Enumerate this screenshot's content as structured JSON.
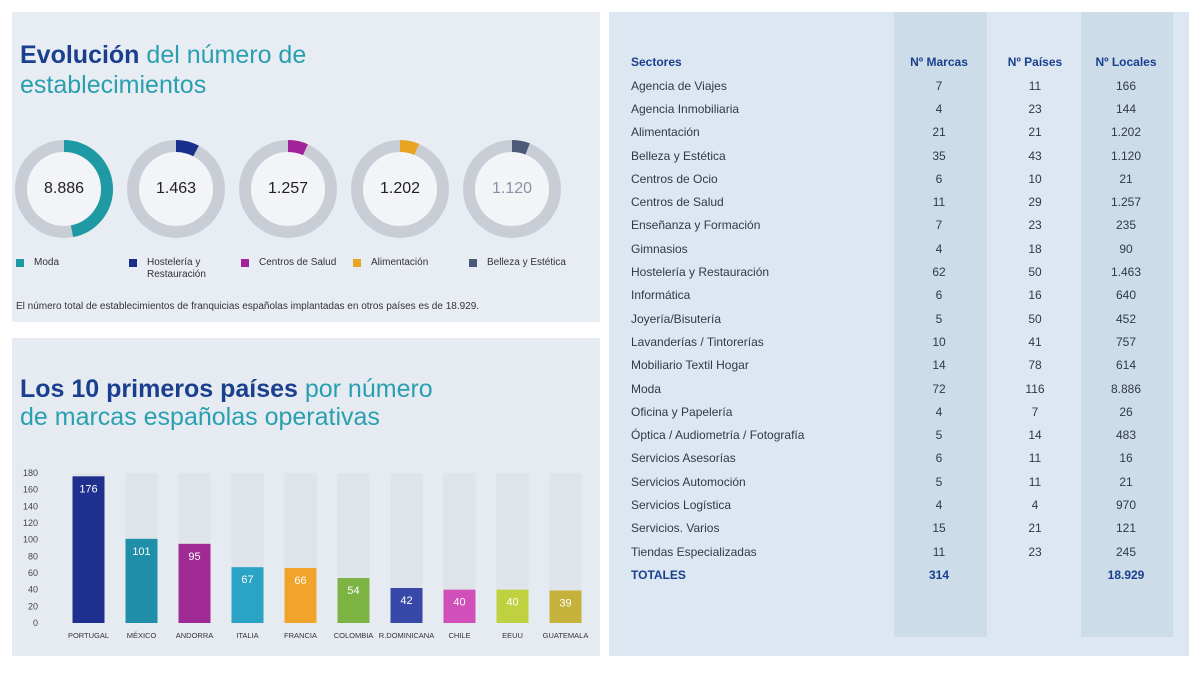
{
  "donut_panel": {
    "title_part1": "Evolución",
    "title_part2": " del número de",
    "title_part3": "establecimientos",
    "footnote": "El número total de establecimientos de franquicias españolas implantadas en otros países es de 18.929."
  },
  "bar_panel": {
    "title_part1": "Los 10 primeros países",
    "title_part2": " por número",
    "title_part3": "de marcas españolas operativas"
  },
  "chart_data": [
    {
      "type": "pie",
      "title": "Evolución del número de establecimientos",
      "series": [
        {
          "name": "Moda",
          "label": "8.886",
          "value": 8886,
          "color": "#1f9aa5"
        },
        {
          "name": "Hostelería y Restauración",
          "label": "1.463",
          "value": 1463,
          "color": "#1a2f8c"
        },
        {
          "name": "Centros de Salud",
          "label": "1.257",
          "value": 1257,
          "color": "#a3219b"
        },
        {
          "name": "Alimentación",
          "label": "1.202",
          "value": 1202,
          "color": "#e9a521"
        },
        {
          "name": "Belleza y Estética",
          "label": "1.120",
          "value": 1120,
          "color": "#4a5a78"
        }
      ],
      "legend_labels": [
        {
          "line1": "Moda",
          "line2": ""
        },
        {
          "line1": "Hostelería y",
          "line2": "Restauración"
        },
        {
          "line1": "Centros de Salud",
          "line2": ""
        },
        {
          "line1": "Alimentación",
          "line2": ""
        },
        {
          "line1": "Belleza y Estética",
          "line2": ""
        }
      ],
      "total": 18929,
      "legend_position": "bottom"
    },
    {
      "type": "bar",
      "title": "Los 10 primeros países por número de marcas españolas operativas",
      "categories": [
        "PORTUGAL",
        "MÉXICO",
        "ANDORRA",
        "ITALIA",
        "FRANCIA",
        "COLOMBIA",
        "R.DOMINICANA",
        "CHILE",
        "EEUU",
        "GUATEMALA"
      ],
      "values": [
        176,
        101,
        95,
        67,
        66,
        54,
        42,
        40,
        40,
        39
      ],
      "colors": [
        "#1e2f8e",
        "#1f8ea8",
        "#a02a94",
        "#2ba3c4",
        "#f0a42a",
        "#7cb342",
        "#3848a8",
        "#d04fb8",
        "#bfd13e",
        "#c4b23a"
      ],
      "ylim": [
        0,
        180
      ],
      "yticks": [
        0,
        20,
        40,
        60,
        80,
        100,
        120,
        140,
        160,
        180
      ],
      "grid": false
    },
    {
      "type": "table",
      "columns": [
        "Sectores",
        "Nº Marcas",
        "Nº Países",
        "Nº Locales"
      ],
      "rows": [
        [
          "Agencia de Viajes",
          "7",
          "11",
          "166"
        ],
        [
          "Agencia Inmobiliaria",
          "4",
          "23",
          "144"
        ],
        [
          "Alimentación",
          "21",
          "21",
          "1.202"
        ],
        [
          "Belleza y Estética",
          "35",
          "43",
          "1.120"
        ],
        [
          "Centros de Ocio",
          "6",
          "10",
          "21"
        ],
        [
          "Centros de Salud",
          "11",
          "29",
          "1.257"
        ],
        [
          "Enseñanza y Formación",
          "7",
          "23",
          "235"
        ],
        [
          "Gimnasios",
          "4",
          "18",
          "90"
        ],
        [
          "Hostelería y Restauración",
          "62",
          "50",
          "1.463"
        ],
        [
          "Informática",
          "6",
          "16",
          "640"
        ],
        [
          "Joyería/Bisutería",
          "5",
          "50",
          "452"
        ],
        [
          "Lavanderías / Tintorerías",
          "10",
          "41",
          "757"
        ],
        [
          "Mobiliario Textil Hogar",
          "14",
          "78",
          "614"
        ],
        [
          "Moda",
          "72",
          "116",
          "8.886"
        ],
        [
          "Oficina y Papelería",
          "4",
          "7",
          "26"
        ],
        [
          "Óptica / Audiometría / Fotografía",
          "5",
          "14",
          "483"
        ],
        [
          "Servicios Asesorías",
          "6",
          "11",
          "16"
        ],
        [
          "Servicios Automoción",
          "5",
          "11",
          "21"
        ],
        [
          "Servicios Logística",
          "4",
          "4",
          "970"
        ],
        [
          "Servicios. Varios",
          "15",
          "21",
          "121"
        ],
        [
          "Tiendas Especializadas",
          "11",
          "23",
          "245"
        ]
      ],
      "totals": [
        "TOTALES",
        "314",
        "",
        "18.929"
      ]
    }
  ]
}
